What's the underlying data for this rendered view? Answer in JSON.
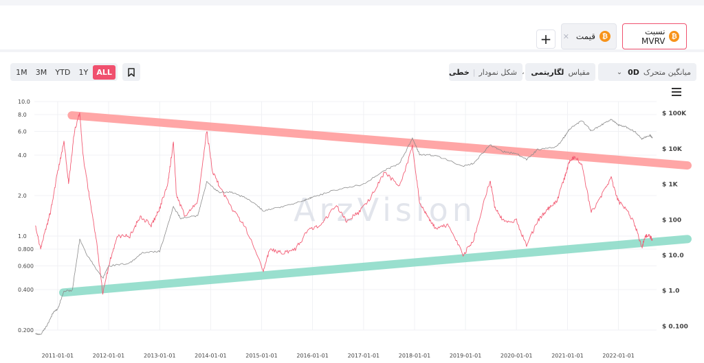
{
  "header": {
    "tags": [
      {
        "label": "نسبت MVRV",
        "icon": "bitcoin-icon",
        "active": true
      },
      {
        "label": "قیمت",
        "icon": "bitcoin-icon",
        "active": false
      }
    ],
    "add_label": "+"
  },
  "toolbar": {
    "ranges": [
      "1M",
      "3M",
      "YTD",
      "1Y",
      "ALL"
    ],
    "active_range": "ALL",
    "moving_average": {
      "label": "میانگین متحرک",
      "value": "0D"
    },
    "scale": {
      "label": "مقیاس",
      "value": "لگاریتمی"
    },
    "chart_shape": {
      "label": "شکل نمودار",
      "value": "خطی"
    }
  },
  "watermark": "ArzVision",
  "colors": {
    "mvrv": "#f25c74",
    "price": "#8a8a8a",
    "upper_band": "#ff9d9d",
    "lower_band": "#8edcc9",
    "accent": "#f0506e"
  },
  "chart_data": {
    "type": "line",
    "x_ticks": [
      "2011-01-01",
      "2012-01-01",
      "2013-01-01",
      "2014-01-01",
      "2015-01-01",
      "2016-01-01",
      "2017-01-01",
      "2018-01-01",
      "2019-01-01",
      "2020-01-01",
      "2021-01-01",
      "2022-01-01"
    ],
    "y_left": {
      "scale": "log",
      "range": [
        0.2,
        10.0
      ],
      "ticks": [
        "10.0",
        "8.0",
        "6.0",
        "4.0",
        "2.0",
        "1.0",
        "0.800",
        "0.600",
        "0.400",
        "0.200"
      ]
    },
    "y_right": {
      "scale": "log",
      "range": [
        0.05,
        150000
      ],
      "ticks": [
        "$ 100K",
        "$ 10K",
        "$ 1K",
        "$ 100",
        "$ 10.0",
        "$ 1.0",
        "$ 0.100"
      ]
    },
    "series": [
      {
        "name": "نسبت MVRV",
        "axis": "left",
        "color": "#f25c74",
        "points": [
          [
            "2010-07-25",
            1.2
          ],
          [
            "2010-09-01",
            0.8
          ],
          [
            "2010-10-15",
            1.2
          ],
          [
            "2010-11-10",
            1.5
          ],
          [
            "2011-01-01",
            3.0
          ],
          [
            "2011-02-15",
            5.0
          ],
          [
            "2011-03-20",
            2.5
          ],
          [
            "2011-05-01",
            6.0
          ],
          [
            "2011-06-08",
            8.4
          ],
          [
            "2011-07-01",
            4.0
          ],
          [
            "2011-08-15",
            2.0
          ],
          [
            "2011-10-01",
            1.0
          ],
          [
            "2011-11-20",
            0.38
          ],
          [
            "2012-01-01",
            0.6
          ],
          [
            "2012-03-01",
            1.0
          ],
          [
            "2012-06-01",
            1.0
          ],
          [
            "2012-08-15",
            1.4
          ],
          [
            "2012-11-01",
            1.2
          ],
          [
            "2013-01-01",
            1.6
          ],
          [
            "2013-03-01",
            2.5
          ],
          [
            "2013-04-09",
            5.0
          ],
          [
            "2013-05-01",
            2.0
          ],
          [
            "2013-07-01",
            1.4
          ],
          [
            "2013-10-01",
            1.8
          ],
          [
            "2013-12-04",
            6.1
          ],
          [
            "2014-01-15",
            3.0
          ],
          [
            "2014-03-01",
            2.4
          ],
          [
            "2014-06-01",
            1.6
          ],
          [
            "2014-09-01",
            1.2
          ],
          [
            "2015-01-14",
            0.56
          ],
          [
            "2015-03-01",
            0.8
          ],
          [
            "2015-06-01",
            0.75
          ],
          [
            "2015-09-01",
            0.8
          ],
          [
            "2015-12-01",
            1.1
          ],
          [
            "2016-03-01",
            1.2
          ],
          [
            "2016-06-15",
            1.7
          ],
          [
            "2016-09-01",
            1.3
          ],
          [
            "2016-12-01",
            1.5
          ],
          [
            "2017-03-01",
            2.0
          ],
          [
            "2017-06-01",
            3.0
          ],
          [
            "2017-09-15",
            2.3
          ],
          [
            "2017-12-17",
            4.6
          ],
          [
            "2018-02-06",
            1.8
          ],
          [
            "2018-04-01",
            1.4
          ],
          [
            "2018-06-01",
            1.15
          ],
          [
            "2018-09-01",
            1.2
          ],
          [
            "2018-12-15",
            0.72
          ],
          [
            "2019-03-01",
            0.95
          ],
          [
            "2019-06-26",
            2.6
          ],
          [
            "2019-08-01",
            1.6
          ],
          [
            "2019-10-01",
            1.3
          ],
          [
            "2020-01-01",
            1.3
          ],
          [
            "2020-03-13",
            0.85
          ],
          [
            "2020-06-01",
            1.3
          ],
          [
            "2020-08-15",
            1.6
          ],
          [
            "2020-10-15",
            1.8
          ],
          [
            "2020-12-15",
            2.8
          ],
          [
            "2021-01-15",
            3.6
          ],
          [
            "2021-02-20",
            3.9
          ],
          [
            "2021-04-14",
            3.4
          ],
          [
            "2021-06-20",
            1.5
          ],
          [
            "2021-09-01",
            2.0
          ],
          [
            "2021-11-10",
            2.7
          ],
          [
            "2022-01-01",
            1.8
          ],
          [
            "2022-03-01",
            1.6
          ],
          [
            "2022-05-01",
            1.2
          ],
          [
            "2022-06-18",
            0.83
          ],
          [
            "2022-07-15",
            1.0
          ],
          [
            "2022-08-15",
            1.0
          ],
          [
            "2022-09-01",
            0.93
          ]
        ]
      },
      {
        "name": "قیمت",
        "axis": "right",
        "color": "#8a8a8a",
        "points": [
          [
            "2010-07-25",
            0.06
          ],
          [
            "2010-09-01",
            0.06
          ],
          [
            "2010-10-15",
            0.1
          ],
          [
            "2010-12-01",
            0.25
          ],
          [
            "2011-01-01",
            0.3
          ],
          [
            "2011-02-15",
            1.0
          ],
          [
            "2011-04-15",
            1.0
          ],
          [
            "2011-06-08",
            28
          ],
          [
            "2011-08-01",
            10
          ],
          [
            "2011-11-20",
            2.2
          ],
          [
            "2012-01-01",
            5
          ],
          [
            "2012-06-01",
            6
          ],
          [
            "2012-09-01",
            12
          ],
          [
            "2013-01-01",
            13
          ],
          [
            "2013-04-09",
            230
          ],
          [
            "2013-06-01",
            110
          ],
          [
            "2013-10-01",
            130
          ],
          [
            "2013-12-04",
            1150
          ],
          [
            "2014-03-01",
            600
          ],
          [
            "2014-06-01",
            600
          ],
          [
            "2014-10-01",
            380
          ],
          [
            "2015-01-14",
            180
          ],
          [
            "2015-06-01",
            230
          ],
          [
            "2015-11-01",
            350
          ],
          [
            "2016-01-01",
            430
          ],
          [
            "2016-06-15",
            700
          ],
          [
            "2017-01-01",
            1000
          ],
          [
            "2017-06-01",
            2500
          ],
          [
            "2017-09-15",
            3800
          ],
          [
            "2017-12-17",
            19500
          ],
          [
            "2018-02-06",
            7000
          ],
          [
            "2018-06-01",
            6500
          ],
          [
            "2018-12-15",
            3200
          ],
          [
            "2019-03-01",
            3900
          ],
          [
            "2019-06-26",
            13000
          ],
          [
            "2019-10-01",
            8300
          ],
          [
            "2020-01-01",
            7200
          ],
          [
            "2020-03-13",
            5000
          ],
          [
            "2020-06-01",
            9500
          ],
          [
            "2020-10-15",
            11500
          ],
          [
            "2020-12-15",
            23000
          ],
          [
            "2021-01-15",
            36000
          ],
          [
            "2021-04-14",
            63000
          ],
          [
            "2021-06-20",
            32000
          ],
          [
            "2021-09-01",
            47000
          ],
          [
            "2021-11-10",
            67000
          ],
          [
            "2022-01-01",
            47000
          ],
          [
            "2022-03-01",
            40000
          ],
          [
            "2022-05-01",
            30000
          ],
          [
            "2022-06-18",
            19000
          ],
          [
            "2022-08-15",
            24000
          ],
          [
            "2022-09-01",
            20000
          ]
        ]
      }
    ],
    "trend_lines": [
      {
        "name": "upper",
        "color": "#ff9d9d",
        "from": [
          "2010-11-15",
          7.9
        ],
        "to": [
          "2023-01-01",
          3.35
        ]
      },
      {
        "name": "lower",
        "color": "#8edcc9",
        "from": [
          "2010-09-15",
          0.38
        ],
        "to": [
          "2023-01-01",
          0.95
        ]
      }
    ]
  }
}
